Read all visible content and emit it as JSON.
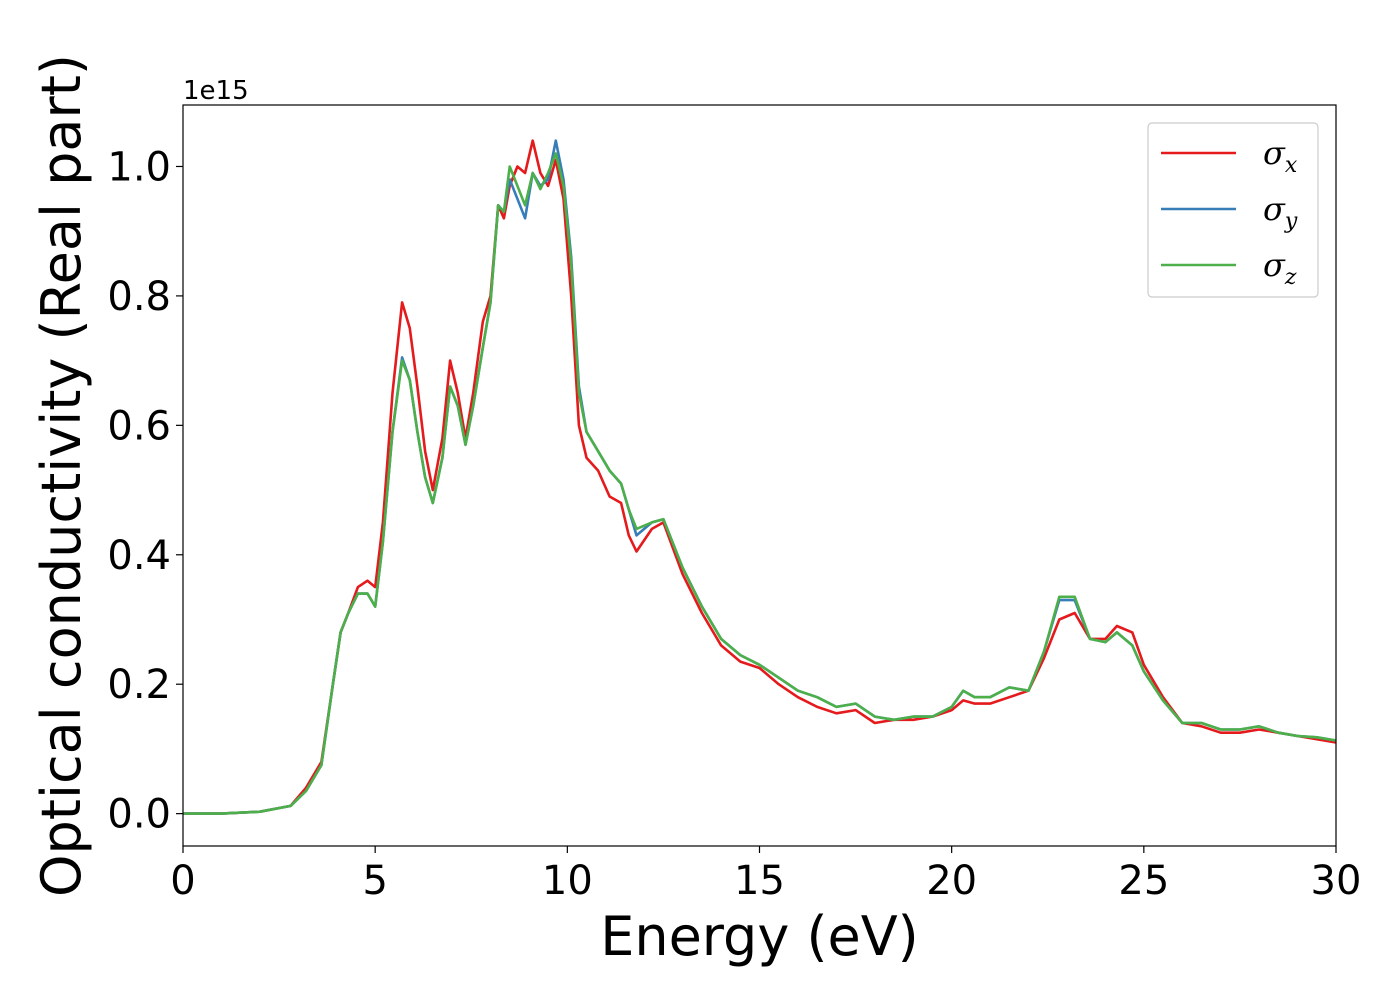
{
  "chart_data": {
    "type": "line",
    "title": "",
    "xlabel": "Energy (eV)",
    "ylabel": "Optical conductivity (Real part)",
    "y_offset_label": "1e15",
    "xlim": [
      0,
      30
    ],
    "ylim": [
      -0.05,
      1.095
    ],
    "xticks": [
      0,
      5,
      10,
      15,
      20,
      25,
      30
    ],
    "yticks": [
      0.0,
      0.2,
      0.4,
      0.6,
      0.8,
      1.0
    ],
    "xtick_labels": [
      "0",
      "5",
      "10",
      "15",
      "20",
      "25",
      "30"
    ],
    "ytick_labels": [
      "0.0",
      "0.2",
      "0.4",
      "0.6",
      "0.8",
      "1.0"
    ],
    "grid": false,
    "legend_position": "top-right",
    "series": [
      {
        "name": "σx",
        "legend_base": "σ",
        "legend_sub": "x",
        "color": "#e41a1c",
        "points": [
          [
            0,
            0
          ],
          [
            1,
            0
          ],
          [
            2,
            0.003
          ],
          [
            2.8,
            0.012
          ],
          [
            3.2,
            0.04
          ],
          [
            3.6,
            0.08
          ],
          [
            3.9,
            0.2
          ],
          [
            4.1,
            0.28
          ],
          [
            4.3,
            0.31
          ],
          [
            4.55,
            0.35
          ],
          [
            4.8,
            0.36
          ],
          [
            5.0,
            0.35
          ],
          [
            5.2,
            0.45
          ],
          [
            5.45,
            0.65
          ],
          [
            5.7,
            0.79
          ],
          [
            5.9,
            0.75
          ],
          [
            6.1,
            0.66
          ],
          [
            6.3,
            0.56
          ],
          [
            6.5,
            0.5
          ],
          [
            6.75,
            0.58
          ],
          [
            6.95,
            0.7
          ],
          [
            7.15,
            0.65
          ],
          [
            7.35,
            0.58
          ],
          [
            7.55,
            0.65
          ],
          [
            7.8,
            0.76
          ],
          [
            8.0,
            0.8
          ],
          [
            8.2,
            0.94
          ],
          [
            8.35,
            0.92
          ],
          [
            8.5,
            0.97
          ],
          [
            8.7,
            1.0
          ],
          [
            8.9,
            0.99
          ],
          [
            9.1,
            1.04
          ],
          [
            9.3,
            0.99
          ],
          [
            9.5,
            0.97
          ],
          [
            9.7,
            1.01
          ],
          [
            9.9,
            0.95
          ],
          [
            10.1,
            0.8
          ],
          [
            10.3,
            0.6
          ],
          [
            10.5,
            0.55
          ],
          [
            10.8,
            0.53
          ],
          [
            11.1,
            0.49
          ],
          [
            11.4,
            0.48
          ],
          [
            11.6,
            0.43
          ],
          [
            11.8,
            0.405
          ],
          [
            12.2,
            0.44
          ],
          [
            12.5,
            0.45
          ],
          [
            13.0,
            0.37
          ],
          [
            13.5,
            0.31
          ],
          [
            14.0,
            0.26
          ],
          [
            14.5,
            0.235
          ],
          [
            15.0,
            0.225
          ],
          [
            15.5,
            0.2
          ],
          [
            16.0,
            0.18
          ],
          [
            16.5,
            0.165
          ],
          [
            17.0,
            0.155
          ],
          [
            17.5,
            0.16
          ],
          [
            18.0,
            0.14
          ],
          [
            18.5,
            0.145
          ],
          [
            19.0,
            0.145
          ],
          [
            19.5,
            0.15
          ],
          [
            20.0,
            0.16
          ],
          [
            20.3,
            0.175
          ],
          [
            20.6,
            0.17
          ],
          [
            21.0,
            0.17
          ],
          [
            21.5,
            0.18
          ],
          [
            22.0,
            0.19
          ],
          [
            22.4,
            0.24
          ],
          [
            22.8,
            0.3
          ],
          [
            23.2,
            0.31
          ],
          [
            23.6,
            0.27
          ],
          [
            24.0,
            0.27
          ],
          [
            24.3,
            0.29
          ],
          [
            24.7,
            0.28
          ],
          [
            25.0,
            0.23
          ],
          [
            25.5,
            0.18
          ],
          [
            26.0,
            0.14
          ],
          [
            26.5,
            0.135
          ],
          [
            27.0,
            0.125
          ],
          [
            27.5,
            0.125
          ],
          [
            28.0,
            0.13
          ],
          [
            28.5,
            0.125
          ],
          [
            29.0,
            0.12
          ],
          [
            29.5,
            0.115
          ],
          [
            30.0,
            0.11
          ]
        ]
      },
      {
        "name": "σy",
        "legend_base": "σ",
        "legend_sub": "y",
        "color": "#377eb8",
        "points": [
          [
            0,
            0
          ],
          [
            1,
            0
          ],
          [
            2,
            0.003
          ],
          [
            2.8,
            0.012
          ],
          [
            3.2,
            0.035
          ],
          [
            3.6,
            0.075
          ],
          [
            3.9,
            0.2
          ],
          [
            4.1,
            0.28
          ],
          [
            4.3,
            0.31
          ],
          [
            4.55,
            0.34
          ],
          [
            4.8,
            0.34
          ],
          [
            5.0,
            0.32
          ],
          [
            5.2,
            0.42
          ],
          [
            5.45,
            0.59
          ],
          [
            5.7,
            0.705
          ],
          [
            5.9,
            0.67
          ],
          [
            6.1,
            0.59
          ],
          [
            6.3,
            0.52
          ],
          [
            6.5,
            0.48
          ],
          [
            6.75,
            0.55
          ],
          [
            6.95,
            0.66
          ],
          [
            7.15,
            0.63
          ],
          [
            7.35,
            0.57
          ],
          [
            7.55,
            0.63
          ],
          [
            7.8,
            0.72
          ],
          [
            8.0,
            0.79
          ],
          [
            8.2,
            0.94
          ],
          [
            8.35,
            0.93
          ],
          [
            8.5,
            0.98
          ],
          [
            8.7,
            0.95
          ],
          [
            8.9,
            0.92
          ],
          [
            9.1,
            0.99
          ],
          [
            9.3,
            0.97
          ],
          [
            9.5,
            0.98
          ],
          [
            9.7,
            1.04
          ],
          [
            9.9,
            0.98
          ],
          [
            10.1,
            0.86
          ],
          [
            10.3,
            0.66
          ],
          [
            10.5,
            0.59
          ],
          [
            10.8,
            0.56
          ],
          [
            11.1,
            0.53
          ],
          [
            11.4,
            0.51
          ],
          [
            11.6,
            0.47
          ],
          [
            11.8,
            0.43
          ],
          [
            12.2,
            0.45
          ],
          [
            12.5,
            0.455
          ],
          [
            13.0,
            0.38
          ],
          [
            13.5,
            0.32
          ],
          [
            14.0,
            0.27
          ],
          [
            14.5,
            0.245
          ],
          [
            15.0,
            0.23
          ],
          [
            15.5,
            0.21
          ],
          [
            16.0,
            0.19
          ],
          [
            16.5,
            0.18
          ],
          [
            17.0,
            0.165
          ],
          [
            17.5,
            0.17
          ],
          [
            18.0,
            0.15
          ],
          [
            18.5,
            0.145
          ],
          [
            19.0,
            0.15
          ],
          [
            19.5,
            0.15
          ],
          [
            20.0,
            0.165
          ],
          [
            20.3,
            0.19
          ],
          [
            20.6,
            0.18
          ],
          [
            21.0,
            0.18
          ],
          [
            21.5,
            0.195
          ],
          [
            22.0,
            0.19
          ],
          [
            22.4,
            0.25
          ],
          [
            22.8,
            0.33
          ],
          [
            23.2,
            0.33
          ],
          [
            23.6,
            0.27
          ],
          [
            24.0,
            0.265
          ],
          [
            24.3,
            0.28
          ],
          [
            24.7,
            0.26
          ],
          [
            25.0,
            0.22
          ],
          [
            25.5,
            0.175
          ],
          [
            26.0,
            0.14
          ],
          [
            26.5,
            0.14
          ],
          [
            27.0,
            0.13
          ],
          [
            27.5,
            0.13
          ],
          [
            28.0,
            0.135
          ],
          [
            28.5,
            0.125
          ],
          [
            29.0,
            0.12
          ],
          [
            29.5,
            0.118
          ],
          [
            30.0,
            0.113
          ]
        ]
      },
      {
        "name": "σz",
        "legend_base": "σ",
        "legend_sub": "z",
        "color": "#4daf4a",
        "points": [
          [
            0,
            0
          ],
          [
            1,
            0
          ],
          [
            2,
            0.003
          ],
          [
            2.8,
            0.012
          ],
          [
            3.2,
            0.035
          ],
          [
            3.6,
            0.075
          ],
          [
            3.9,
            0.2
          ],
          [
            4.1,
            0.28
          ],
          [
            4.3,
            0.31
          ],
          [
            4.55,
            0.34
          ],
          [
            4.8,
            0.34
          ],
          [
            5.0,
            0.32
          ],
          [
            5.2,
            0.42
          ],
          [
            5.45,
            0.59
          ],
          [
            5.7,
            0.7
          ],
          [
            5.9,
            0.67
          ],
          [
            6.1,
            0.59
          ],
          [
            6.3,
            0.52
          ],
          [
            6.5,
            0.48
          ],
          [
            6.75,
            0.55
          ],
          [
            6.95,
            0.66
          ],
          [
            7.15,
            0.63
          ],
          [
            7.35,
            0.57
          ],
          [
            7.55,
            0.63
          ],
          [
            7.8,
            0.72
          ],
          [
            8.0,
            0.79
          ],
          [
            8.2,
            0.94
          ],
          [
            8.35,
            0.93
          ],
          [
            8.5,
            1.0
          ],
          [
            8.7,
            0.97
          ],
          [
            8.9,
            0.94
          ],
          [
            9.1,
            0.99
          ],
          [
            9.3,
            0.965
          ],
          [
            9.5,
            0.99
          ],
          [
            9.7,
            1.02
          ],
          [
            9.9,
            0.97
          ],
          [
            10.1,
            0.85
          ],
          [
            10.3,
            0.65
          ],
          [
            10.5,
            0.59
          ],
          [
            10.8,
            0.56
          ],
          [
            11.1,
            0.53
          ],
          [
            11.4,
            0.51
          ],
          [
            11.6,
            0.47
          ],
          [
            11.8,
            0.44
          ],
          [
            12.2,
            0.45
          ],
          [
            12.5,
            0.455
          ],
          [
            13.0,
            0.38
          ],
          [
            13.5,
            0.32
          ],
          [
            14.0,
            0.27
          ],
          [
            14.5,
            0.245
          ],
          [
            15.0,
            0.23
          ],
          [
            15.5,
            0.21
          ],
          [
            16.0,
            0.19
          ],
          [
            16.5,
            0.18
          ],
          [
            17.0,
            0.165
          ],
          [
            17.5,
            0.17
          ],
          [
            18.0,
            0.15
          ],
          [
            18.5,
            0.145
          ],
          [
            19.0,
            0.15
          ],
          [
            19.5,
            0.15
          ],
          [
            20.0,
            0.165
          ],
          [
            20.3,
            0.19
          ],
          [
            20.6,
            0.18
          ],
          [
            21.0,
            0.18
          ],
          [
            21.5,
            0.195
          ],
          [
            22.0,
            0.19
          ],
          [
            22.4,
            0.25
          ],
          [
            22.8,
            0.335
          ],
          [
            23.2,
            0.335
          ],
          [
            23.6,
            0.27
          ],
          [
            24.0,
            0.265
          ],
          [
            24.3,
            0.28
          ],
          [
            24.7,
            0.26
          ],
          [
            25.0,
            0.22
          ],
          [
            25.5,
            0.175
          ],
          [
            26.0,
            0.14
          ],
          [
            26.5,
            0.14
          ],
          [
            27.0,
            0.13
          ],
          [
            27.5,
            0.13
          ],
          [
            28.0,
            0.135
          ],
          [
            28.5,
            0.125
          ],
          [
            29.0,
            0.12
          ],
          [
            29.5,
            0.118
          ],
          [
            30.0,
            0.113
          ]
        ]
      }
    ]
  }
}
